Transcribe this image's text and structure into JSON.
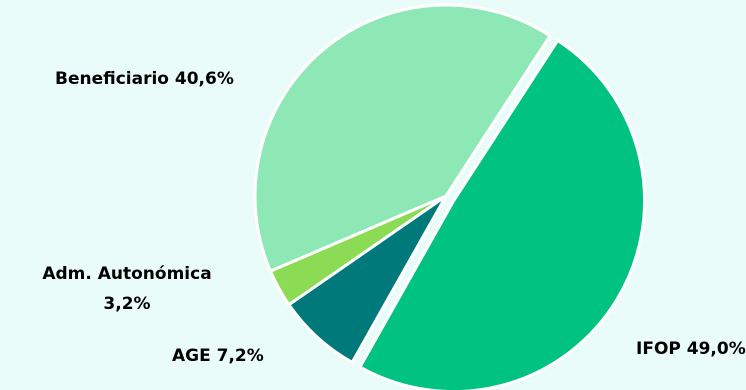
{
  "chart_data": {
    "type": "pie",
    "title": "",
    "slices": [
      {
        "label": "IFOP",
        "value": 49.0,
        "display": "IFOP 49,0%",
        "color": "#00c281"
      },
      {
        "label": "AGE",
        "value": 7.2,
        "display": "AGE 7,2%",
        "color": "#00797a"
      },
      {
        "label": "Adm. Autonómica",
        "value": 3.2,
        "display_lines": [
          "Adm. Autonómica",
          "3,2%"
        ],
        "color": "#8bdb55"
      },
      {
        "label": "Beneficiario",
        "value": 40.6,
        "display": "Beneficiario 40,6%",
        "color": "#8de8b5"
      }
    ],
    "legend": "none",
    "background": "#eafcf9"
  }
}
